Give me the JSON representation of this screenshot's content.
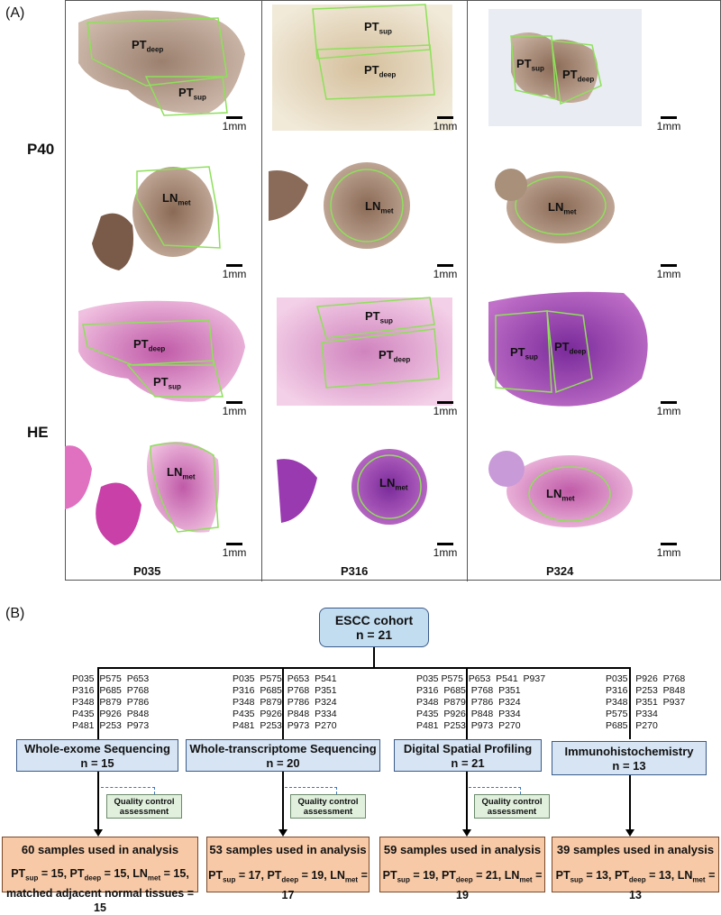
{
  "panelA": {
    "label": "(A)",
    "row_labels": {
      "p40": "P40",
      "he": "HE"
    },
    "scale": "1mm",
    "patients": [
      "P035",
      "P316",
      "P324"
    ],
    "labels": {
      "pt": "PT",
      "deep": "deep",
      "sup": "sup",
      "ln": "LN",
      "met": "met"
    }
  },
  "panelB": {
    "label": "(B)",
    "cohort": {
      "title": "ESCC cohort",
      "n": "n = 21"
    },
    "methods": [
      {
        "title": "Whole-exome Sequencing",
        "n": "n = 15",
        "ids": "P035  P575  P653\nP316  P685  P768\nP348  P879  P786\nP435  P926  P848\nP481  P253  P973"
      },
      {
        "title": "Whole-transcriptome  Sequencing",
        "n": "n = 20",
        "ids": "P035  P575  P653  P541\nP316  P685  P768  P351\nP348  P879  P786  P324\nP435  P926  P848  P334\nP481  P253  P973  P270"
      },
      {
        "title": "Digital Spatial Profiling",
        "n": "n = 21",
        "ids": "P035 P575  P653  P541  P937\nP316  P685  P768  P351\nP348  P879  P786  P324\nP435  P926  P848  P334\nP481  P253  P973  P270"
      },
      {
        "title": "Immunohistochemistry",
        "n": "n = 13",
        "ids": "P035   P926  P768\nP316   P253  P848\nP348   P351  P937\nP575   P334\nP685   P270"
      }
    ],
    "qc": {
      "line1": "Quality control",
      "line2": "assessment"
    },
    "results": [
      {
        "title": "60 samples used in analysis",
        "sup": "15",
        "deep": "15",
        "met": "15",
        "extra": "matched adjacent normal tissues = 15"
      },
      {
        "title": "53 samples used in analysis",
        "sup": "17",
        "deep": "19",
        "met": "17"
      },
      {
        "title": "59 samples used in analysis",
        "sup": "19",
        "deep": "21",
        "met": "19"
      },
      {
        "title": "39 samples used in analysis",
        "sup": "13",
        "deep": "13",
        "met": "13"
      }
    ]
  },
  "colors": {
    "outline": "#8ee05a",
    "p40_tissue": "#a08770",
    "he_tissue": "#d96fb8",
    "he_dark": "#8a3aa8",
    "cohort_fill": "#c2dcf0",
    "method_fill": "#d6e4f3",
    "result_fill": "#f7c9a6",
    "qc_fill": "#e0f0dd"
  }
}
